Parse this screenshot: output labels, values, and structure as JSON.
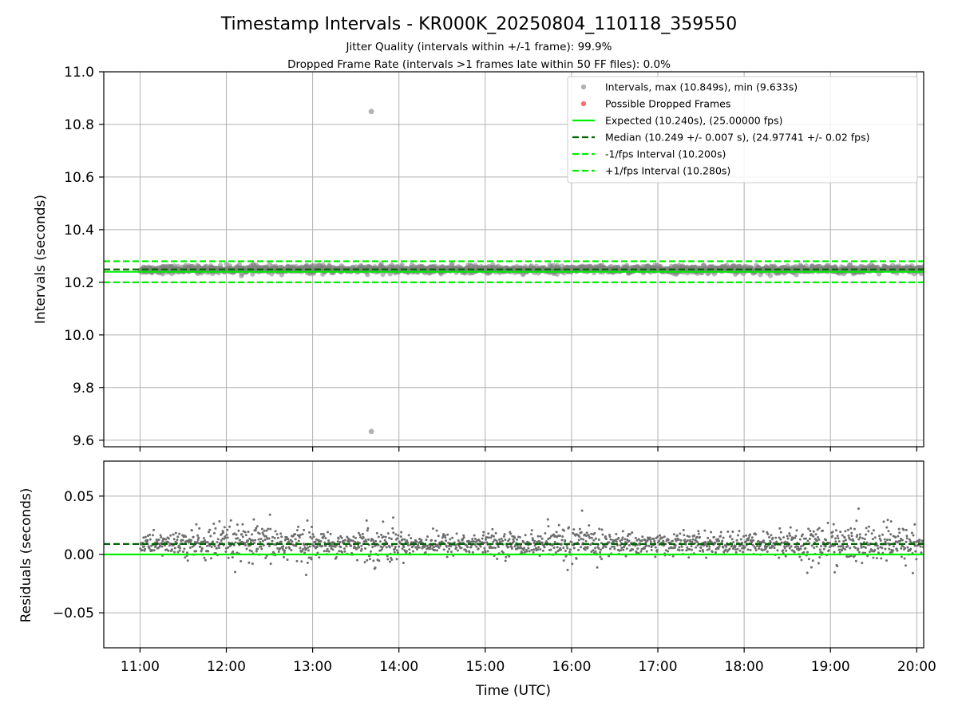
{
  "chart_data": [
    {
      "type": "scatter",
      "title": "Timestamp Intervals - KR000K_20250804_110118_359550",
      "subtitle_lines": [
        "Jitter Quality (intervals within +/-1 frame): 99.9%",
        "Dropped Frame Rate (intervals >1 frames late within 50 FF files): 0.0%"
      ],
      "ylabel": "Intervals (seconds)",
      "xlim_hours": [
        10.58,
        20.08
      ],
      "ylim": [
        9.575,
        11.0
      ],
      "yticks": [
        {
          "value": 9.6,
          "label": "9.6"
        },
        {
          "value": 9.8,
          "label": "9.8"
        },
        {
          "value": 10.0,
          "label": "10.0"
        },
        {
          "value": 10.2,
          "label": "10.2"
        },
        {
          "value": 10.4,
          "label": "10.4"
        },
        {
          "value": 10.6,
          "label": "10.6"
        },
        {
          "value": 10.8,
          "label": "10.8"
        },
        {
          "value": 11.0,
          "label": "11.0"
        }
      ],
      "grid": true,
      "legend_position": "top-right",
      "series": [
        {
          "name": "Intervals, max (10.849s), min (9.633s)",
          "kind": "points",
          "color": "#808080",
          "time_range_hours": [
            11.0,
            20.08
          ],
          "band": [
            10.225,
            10.272
          ],
          "outliers": [
            {
              "t": 13.68,
              "y": 10.849
            },
            {
              "t": 13.68,
              "y": 9.633
            }
          ]
        },
        {
          "name": "Possible Dropped Frames",
          "kind": "points",
          "color": "#ff5555",
          "points": []
        },
        {
          "name": "Expected (10.240s), (25.00000 fps)",
          "kind": "hline",
          "y": 10.24,
          "color": "#00ee00",
          "style": "solid"
        },
        {
          "name": "Median (10.249 +/- 0.007 s), (24.97741 +/- 0.02 fps)",
          "kind": "hline",
          "y": 10.249,
          "color": "#006400",
          "style": "dashed"
        },
        {
          "name": "-1/fps Interval (10.200s)",
          "kind": "hline",
          "y": 10.2,
          "color": "#00ee00",
          "style": "dashed"
        },
        {
          "name": "+1/fps Interval (10.280s)",
          "kind": "hline",
          "y": 10.28,
          "color": "#00ee00",
          "style": "dashed"
        }
      ]
    },
    {
      "type": "scatter",
      "ylabel": "Residuals (seconds)",
      "xlabel": "Time (UTC)",
      "xlim_hours": [
        10.58,
        20.08
      ],
      "ylim": [
        -0.08,
        0.08
      ],
      "xticks": [
        {
          "value": 11,
          "label": "11:00"
        },
        {
          "value": 12,
          "label": "12:00"
        },
        {
          "value": 13,
          "label": "13:00"
        },
        {
          "value": 14,
          "label": "14:00"
        },
        {
          "value": 15,
          "label": "15:00"
        },
        {
          "value": 16,
          "label": "16:00"
        },
        {
          "value": 17,
          "label": "17:00"
        },
        {
          "value": 18,
          "label": "18:00"
        },
        {
          "value": 19,
          "label": "19:00"
        },
        {
          "value": 20,
          "label": "20:00"
        }
      ],
      "yticks": [
        {
          "value": -0.05,
          "label": "−0.05"
        },
        {
          "value": 0.0,
          "label": "0.00"
        },
        {
          "value": 0.05,
          "label": "0.05"
        }
      ],
      "grid": true,
      "series": [
        {
          "name": "",
          "kind": "points",
          "color": "#6e6e6e",
          "time_range_hours": [
            11.0,
            20.08
          ],
          "center": 0.009,
          "spread": 0.012
        },
        {
          "name": "",
          "kind": "hline",
          "y": 0.0,
          "color": "#00ee00",
          "style": "solid"
        },
        {
          "name": "",
          "kind": "hline",
          "y": 0.009,
          "color": "#006400",
          "style": "dashed"
        }
      ]
    }
  ]
}
